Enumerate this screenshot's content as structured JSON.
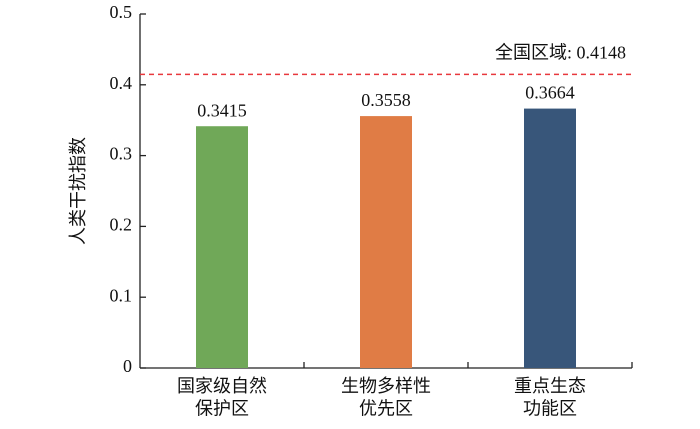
{
  "chart_data": {
    "type": "bar",
    "y_label": "人类干扰指数",
    "categories": [
      "国家级自然\n保护区",
      "生物多样性\n优先区",
      "重点生态\n功能区"
    ],
    "values": [
      0.3415,
      0.3558,
      0.3664
    ],
    "colors": [
      "#70a858",
      "#e07c45",
      "#38567a"
    ],
    "ylim": [
      0,
      0.5
    ],
    "yticks": [
      0,
      0.1,
      0.2,
      0.3,
      0.4,
      0.5
    ],
    "reference_line": {
      "value": 0.4148,
      "label": "全国区域: 0.4148",
      "color": "#e8383d"
    }
  }
}
